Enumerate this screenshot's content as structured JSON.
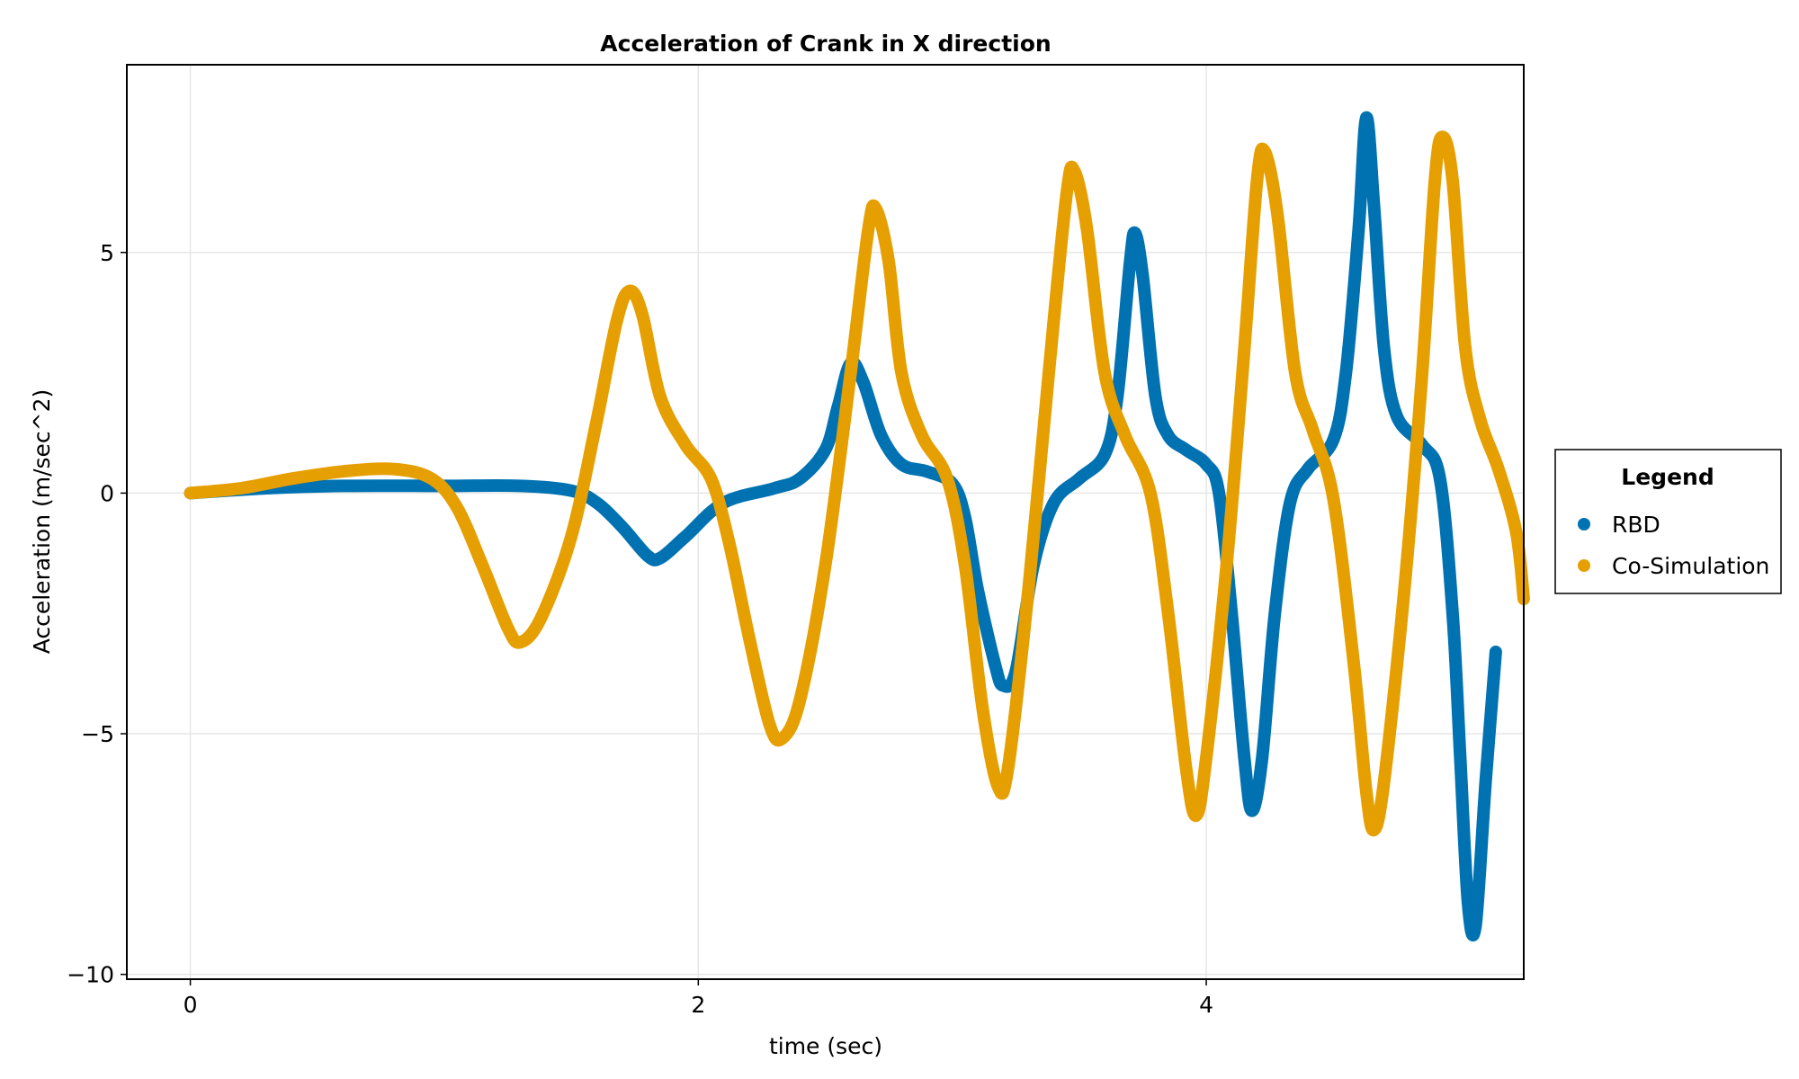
{
  "chart_data": {
    "type": "line",
    "title": "Acceleration of Crank in X direction",
    "xlabel": "time (sec)",
    "ylabel": "Acceleration (m/sec^2)",
    "xlim": [
      -0.25,
      5.25
    ],
    "ylim": [
      -10.1,
      8.9
    ],
    "xticks": [
      0,
      2,
      4
    ],
    "xtick_labels": [
      "0",
      "2",
      "4"
    ],
    "yticks": [
      5,
      0,
      -5,
      -10
    ],
    "ytick_labels": [
      "5",
      "0",
      "−5",
      "−10"
    ],
    "grid": true,
    "legend_title": "Legend",
    "legend_position": "right",
    "series": [
      {
        "name": "RBD",
        "color": "#0072b2",
        "points": [
          [
            0,
            0
          ],
          [
            0.3,
            0.1
          ],
          [
            0.6,
            0.15
          ],
          [
            1.0,
            0.15
          ],
          [
            1.3,
            0.15
          ],
          [
            1.5,
            0.05
          ],
          [
            1.6,
            -0.2
          ],
          [
            1.7,
            -0.7
          ],
          [
            1.8,
            -1.3
          ],
          [
            1.85,
            -1.35
          ],
          [
            1.95,
            -0.9
          ],
          [
            2.1,
            -0.2
          ],
          [
            2.3,
            0.1
          ],
          [
            2.4,
            0.3
          ],
          [
            2.5,
            0.9
          ],
          [
            2.55,
            1.8
          ],
          [
            2.6,
            2.7
          ],
          [
            2.65,
            2.3
          ],
          [
            2.72,
            1.2
          ],
          [
            2.8,
            0.6
          ],
          [
            2.9,
            0.45
          ],
          [
            3.0,
            0.2
          ],
          [
            3.05,
            -0.5
          ],
          [
            3.1,
            -2.0
          ],
          [
            3.17,
            -3.6
          ],
          [
            3.2,
            -4.0
          ],
          [
            3.25,
            -3.7
          ],
          [
            3.32,
            -1.5
          ],
          [
            3.4,
            -0.2
          ],
          [
            3.5,
            0.3
          ],
          [
            3.6,
            0.8
          ],
          [
            3.65,
            2.0
          ],
          [
            3.7,
            4.8
          ],
          [
            3.72,
            5.4
          ],
          [
            3.75,
            4.5
          ],
          [
            3.8,
            2.0
          ],
          [
            3.85,
            1.2
          ],
          [
            3.92,
            0.9
          ],
          [
            4.0,
            0.6
          ],
          [
            4.05,
            0.0
          ],
          [
            4.1,
            -2.5
          ],
          [
            4.15,
            -5.5
          ],
          [
            4.18,
            -6.6
          ],
          [
            4.22,
            -5.5
          ],
          [
            4.27,
            -2.5
          ],
          [
            4.33,
            -0.2
          ],
          [
            4.4,
            0.5
          ],
          [
            4.5,
            1.1
          ],
          [
            4.55,
            2.5
          ],
          [
            4.6,
            5.5
          ],
          [
            4.63,
            7.8
          ],
          [
            4.66,
            6.0
          ],
          [
            4.7,
            3.0
          ],
          [
            4.75,
            1.6
          ],
          [
            4.85,
            1.0
          ],
          [
            4.92,
            0.3
          ],
          [
            4.97,
            -2.5
          ],
          [
            5.0,
            -5.5
          ],
          [
            5.03,
            -8.5
          ],
          [
            5.06,
            -9.0
          ],
          [
            5.1,
            -6.0
          ],
          [
            5.14,
            -3.3
          ]
        ]
      },
      {
        "name": "Co-Simulation",
        "color": "#e69f00",
        "points": [
          [
            0,
            0
          ],
          [
            0.2,
            0.1
          ],
          [
            0.4,
            0.3
          ],
          [
            0.6,
            0.45
          ],
          [
            0.8,
            0.5
          ],
          [
            0.95,
            0.3
          ],
          [
            1.05,
            -0.3
          ],
          [
            1.15,
            -1.5
          ],
          [
            1.25,
            -2.8
          ],
          [
            1.3,
            -3.1
          ],
          [
            1.38,
            -2.6
          ],
          [
            1.5,
            -0.9
          ],
          [
            1.6,
            1.5
          ],
          [
            1.68,
            3.6
          ],
          [
            1.73,
            4.2
          ],
          [
            1.78,
            3.7
          ],
          [
            1.85,
            2.0
          ],
          [
            1.95,
            1.0
          ],
          [
            2.05,
            0.3
          ],
          [
            2.12,
            -1.0
          ],
          [
            2.2,
            -3.0
          ],
          [
            2.28,
            -4.8
          ],
          [
            2.33,
            -5.1
          ],
          [
            2.4,
            -4.3
          ],
          [
            2.5,
            -1.5
          ],
          [
            2.6,
            2.5
          ],
          [
            2.67,
            5.5
          ],
          [
            2.7,
            5.9
          ],
          [
            2.75,
            4.8
          ],
          [
            2.8,
            2.5
          ],
          [
            2.88,
            1.2
          ],
          [
            2.98,
            0.3
          ],
          [
            3.05,
            -1.5
          ],
          [
            3.12,
            -4.5
          ],
          [
            3.18,
            -6.1
          ],
          [
            3.22,
            -5.7
          ],
          [
            3.3,
            -2.0
          ],
          [
            3.38,
            2.5
          ],
          [
            3.45,
            6.2
          ],
          [
            3.48,
            6.7
          ],
          [
            3.53,
            5.5
          ],
          [
            3.6,
            2.5
          ],
          [
            3.68,
            1.2
          ],
          [
            3.78,
            0.0
          ],
          [
            3.85,
            -2.5
          ],
          [
            3.92,
            -5.7
          ],
          [
            3.96,
            -6.7
          ],
          [
            4.0,
            -5.5
          ],
          [
            4.08,
            -1.5
          ],
          [
            4.15,
            3.0
          ],
          [
            4.2,
            6.5
          ],
          [
            4.23,
            7.1
          ],
          [
            4.28,
            5.8
          ],
          [
            4.35,
            2.5
          ],
          [
            4.42,
            1.3
          ],
          [
            4.5,
            -0.1
          ],
          [
            4.58,
            -3.5
          ],
          [
            4.63,
            -6.2
          ],
          [
            4.66,
            -7.0
          ],
          [
            4.7,
            -6.0
          ],
          [
            4.78,
            -2.0
          ],
          [
            4.85,
            2.5
          ],
          [
            4.9,
            6.5
          ],
          [
            4.93,
            7.4
          ],
          [
            4.97,
            6.5
          ],
          [
            5.02,
            3.0
          ],
          [
            5.08,
            1.5
          ],
          [
            5.15,
            0.5
          ],
          [
            5.22,
            -0.8
          ],
          [
            5.25,
            -2.2
          ]
        ]
      }
    ]
  }
}
